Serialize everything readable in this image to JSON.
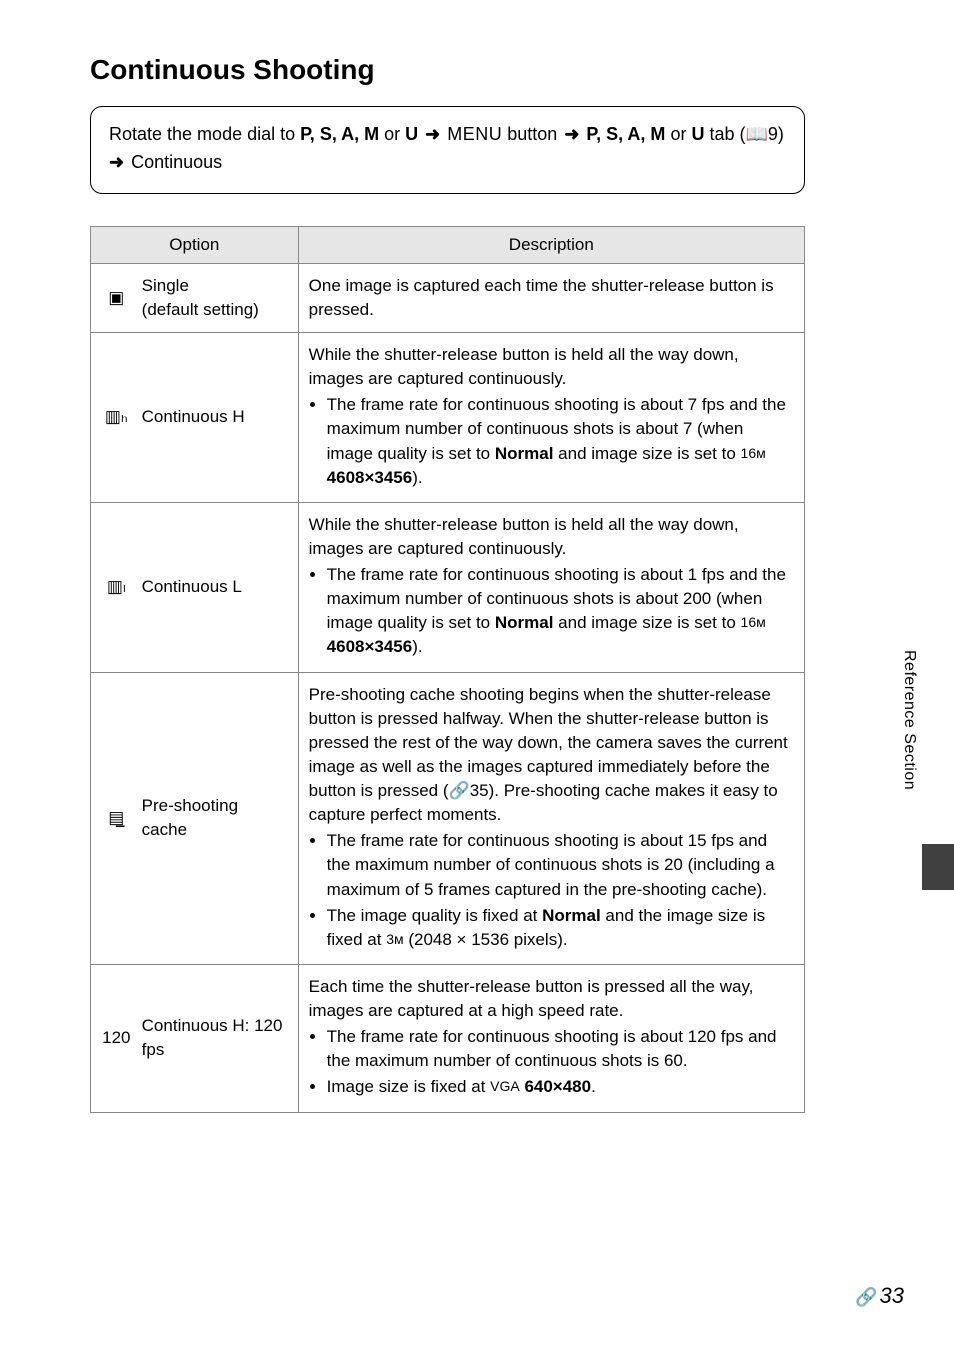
{
  "title": "Continuous Shooting",
  "instruction": {
    "prefix": "Rotate the mode dial to ",
    "modes1": "P, S, A, M",
    "or1": " or ",
    "modeU1": "U",
    "arrow1": " ➜ ",
    "menu": "MENU",
    "button": " button",
    "arrow2": " ➜ ",
    "modes2": "P, S, A, M",
    "or2": " or ",
    "modeU2": "U",
    "tab": " tab (",
    "book": "📖",
    "pageRef": "9)",
    "arrow3": " ➜ ",
    "cont": "Continuous"
  },
  "table": {
    "headers": {
      "option": "Option",
      "description": "Description"
    },
    "rows": [
      {
        "icon": "▣",
        "name": "Single\n(default setting)",
        "descIntro": "One image is captured each time the shutter-release button is pressed.",
        "bullets": []
      },
      {
        "icon": "▥ₕ",
        "name": "Continuous H",
        "descIntro": "While the shutter-release button is held all the way down, images are captured continuously.",
        "bullets": [
          "The frame rate for continuous shooting is about 7 fps and the maximum number of continuous shots is about 7 (when image quality is set to <b>Normal</b> and image size is set to <span class='small-sym'>16ᴍ</span> <b>4608×3456</b>)."
        ]
      },
      {
        "icon": "▥ₗ",
        "name": "Continuous L",
        "descIntro": "While the shutter-release button is held all the way down, images are captured continuously.",
        "bullets": [
          "The frame rate for continuous shooting is about 1 fps and the maximum number of continuous shots is about 200 (when image quality is set to <b>Normal</b> and image size is set to <span class='small-sym'>16ᴍ</span> <b>4608×3456</b>)."
        ]
      },
      {
        "icon": "▤̲",
        "name": "Pre-shooting cache",
        "descIntro": "Pre-shooting cache shooting begins when the shutter-release button is pressed halfway. When the shutter-release button is pressed the rest of the way down, the camera saves the current image as well as the images captured immediately before the button is pressed (<span class='monosym'>🔗</span>35). Pre-shooting cache makes it easy to capture perfect moments.",
        "bullets": [
          "The frame rate for continuous shooting is about 15 fps and the maximum number of continuous shots is 20 (including a maximum of 5 frames captured in the pre-shooting cache).",
          "The image quality is fixed at <b>Normal</b> and the image size is fixed at <span class='small-sym'>3ᴍ</span> (2048 × 1536 pixels)."
        ]
      },
      {
        "icon": "120",
        "name": "Continuous H: 120 fps",
        "descIntro": "Each time the shutter-release button is pressed all the way, images are captured at a high speed rate.",
        "bullets": [
          "The frame rate for continuous shooting is about 120 fps and the maximum number of continuous shots is 60.",
          "Image size is fixed at <span class='small-sym'>VGA</span> <b>640×480</b>."
        ]
      }
    ]
  },
  "sideTab": "Reference Section",
  "pageNumber": "33",
  "pagePrefix": "🔗"
}
